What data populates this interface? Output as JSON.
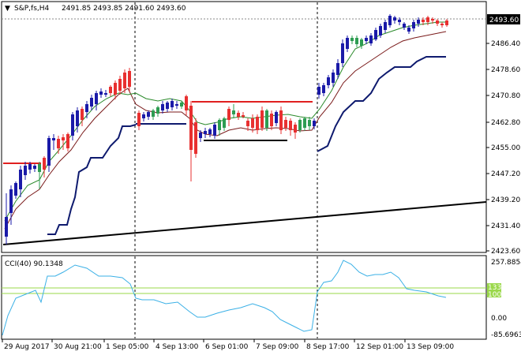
{
  "main_panel": {
    "header_arrow": "▼",
    "symbol_label": "S&P,fs,H4",
    "ohlc_text": "2491.85 2493.85 2491.60 2493.60",
    "price_ticks": [
      "2493.60",
      "2486.40",
      "2478.60",
      "2470.80",
      "2462.80",
      "2455.00",
      "2447.20",
      "2439.20",
      "2431.40",
      "2423.60"
    ],
    "current_price": "2493.60"
  },
  "indicator_panel": {
    "label": "CCI(40) 90.1348",
    "scale_ticks": [
      "257.8854",
      "133",
      "100",
      "0.00",
      "-85.6963"
    ],
    "level_labels": [
      "133",
      "100"
    ]
  },
  "time_axis": {
    "labels": [
      "29 Aug 2017",
      "30 Aug 21:00",
      "1 Sep 05:00",
      "4 Sep 13:00",
      "6 Sep 01:00",
      "7 Sep 09:00",
      "8 Sep 17:00",
      "12 Sep 01:00",
      "13 Sep 09:00"
    ]
  },
  "colors": {
    "bull": "#1a1aa8",
    "bear": "#e83030",
    "bull_in_bear_zone": "#2e9d52",
    "navy_line": "#0e1a6e",
    "green_ma": "#2a8a2a",
    "dark_red_ma": "#7a1a1a",
    "level_red": "#e02020",
    "cci": "#3ab0e6",
    "cci_levels": "#9ad84a",
    "trend": "#000000",
    "axis": "#000000",
    "separator": "#000000"
  },
  "chart_data": {
    "type": "candlestick",
    "series": [
      {
        "name": "S&P,fs,H4"
      },
      {
        "name": "CCI(40)"
      }
    ],
    "last_close": 2493.6,
    "cci_last": 90.1348
  }
}
